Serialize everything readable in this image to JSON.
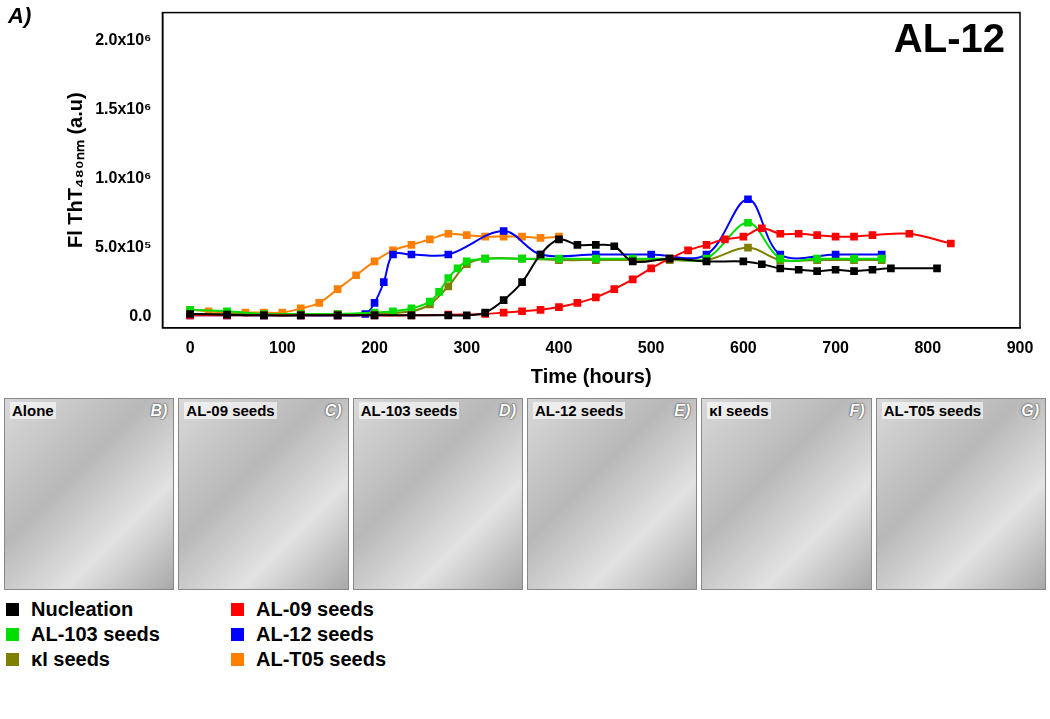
{
  "chart_data": {
    "type": "scatter",
    "title": "AL-12",
    "annotations": [
      {
        "text": "A)"
      }
    ],
    "x_label": "Time (hours)",
    "y_label": "Fl ThT₄₈₀ₙₘ (a.u)",
    "xlim": [
      -30,
      900
    ],
    "xticks": [
      0,
      100,
      200,
      300,
      400,
      500,
      600,
      700,
      800,
      900
    ],
    "ylim": [
      -80000,
      2200000
    ],
    "yticks": [
      {
        "value": 0,
        "label": "0.0"
      },
      {
        "value": 500000,
        "label": "5.0x10⁵"
      },
      {
        "value": 1000000,
        "label": "1.0x10⁶"
      },
      {
        "value": 1500000,
        "label": "1.5x10⁶"
      },
      {
        "value": 2000000,
        "label": "2.0x10⁶"
      }
    ],
    "grid": false,
    "legend": "bottom",
    "marker": "square",
    "line_style": "solid",
    "series": [
      {
        "name": "Nucleation",
        "color": "#000000",
        "x": [
          0,
          40,
          80,
          120,
          160,
          200,
          240,
          280,
          300,
          320,
          340,
          360,
          380,
          400,
          420,
          440,
          460,
          480,
          520,
          560,
          600,
          620,
          640,
          660,
          680,
          700,
          720,
          740,
          760,
          810
        ],
        "values": [
          20000,
          15000,
          10000,
          10000,
          10000,
          10000,
          10000,
          10000,
          10000,
          30000,
          120000,
          250000,
          450000,
          560000,
          520000,
          520000,
          510000,
          400000,
          420000,
          400000,
          400000,
          380000,
          350000,
          340000,
          330000,
          340000,
          330000,
          340000,
          350000,
          350000
        ]
      },
      {
        "name": "AL-09 seeds",
        "color": "#ff0000",
        "x": [
          0,
          40,
          80,
          120,
          160,
          200,
          240,
          280,
          320,
          340,
          360,
          380,
          400,
          420,
          440,
          460,
          480,
          500,
          520,
          540,
          560,
          580,
          600,
          620,
          640,
          660,
          680,
          700,
          720,
          740,
          780,
          825
        ],
        "values": [
          10000,
          10000,
          10000,
          10000,
          10000,
          10000,
          10000,
          15000,
          20000,
          30000,
          40000,
          50000,
          70000,
          100000,
          140000,
          200000,
          270000,
          350000,
          420000,
          480000,
          520000,
          560000,
          580000,
          640000,
          600000,
          600000,
          590000,
          580000,
          580000,
          590000,
          600000,
          530000
        ]
      },
      {
        "name": "AL-103 seeds",
        "color": "#00dd00",
        "x": [
          0,
          40,
          80,
          120,
          160,
          200,
          220,
          240,
          260,
          270,
          280,
          290,
          300,
          320,
          360,
          400,
          440,
          480,
          520,
          560,
          605,
          640,
          680,
          720,
          750
        ],
        "values": [
          50000,
          40000,
          20000,
          20000,
          20000,
          30000,
          40000,
          60000,
          110000,
          180000,
          280000,
          350000,
          400000,
          420000,
          420000,
          420000,
          420000,
          420000,
          420000,
          420000,
          680000,
          420000,
          420000,
          420000,
          420000
        ]
      },
      {
        "name": "AL-12 seeds",
        "color": "#0000ff",
        "x": [
          0,
          40,
          80,
          120,
          160,
          190,
          200,
          210,
          220,
          240,
          280,
          340,
          380,
          440,
          500,
          560,
          605,
          640,
          700,
          750
        ],
        "values": [
          10000,
          10000,
          10000,
          10000,
          10000,
          20000,
          100000,
          250000,
          450000,
          450000,
          450000,
          620000,
          450000,
          450000,
          450000,
          450000,
          850000,
          450000,
          450000,
          450000
        ]
      },
      {
        "name": "κI seeds",
        "color": "#808000",
        "x": [
          0,
          40,
          80,
          120,
          160,
          200,
          240,
          260,
          280,
          300,
          320,
          360,
          400,
          440,
          480,
          520,
          560,
          605,
          640,
          680,
          720,
          750
        ],
        "values": [
          20000,
          20000,
          20000,
          20000,
          20000,
          20000,
          40000,
          90000,
          220000,
          380000,
          420000,
          420000,
          410000,
          410000,
          410000,
          410000,
          410000,
          500000,
          410000,
          410000,
          410000,
          410000
        ]
      },
      {
        "name": "AL-T05 seeds",
        "color": "#ff8000",
        "x": [
          0,
          20,
          40,
          60,
          80,
          100,
          120,
          140,
          160,
          180,
          200,
          220,
          240,
          260,
          280,
          300,
          320,
          340,
          360,
          380,
          400
        ],
        "values": [
          50000,
          40000,
          30000,
          30000,
          30000,
          30000,
          60000,
          100000,
          200000,
          300000,
          400000,
          480000,
          520000,
          560000,
          600000,
          590000,
          580000,
          580000,
          580000,
          570000,
          580000
        ]
      }
    ]
  },
  "panels": [
    {
      "title": "Alone",
      "label": "B)"
    },
    {
      "title": "AL-09 seeds",
      "label": "C)"
    },
    {
      "title": "AL-103 seeds",
      "label": "D)"
    },
    {
      "title": "AL-12 seeds",
      "label": "E)"
    },
    {
      "title": "κI seeds",
      "label": "F)"
    },
    {
      "title": "AL-T05 seeds",
      "label": "G)"
    }
  ]
}
